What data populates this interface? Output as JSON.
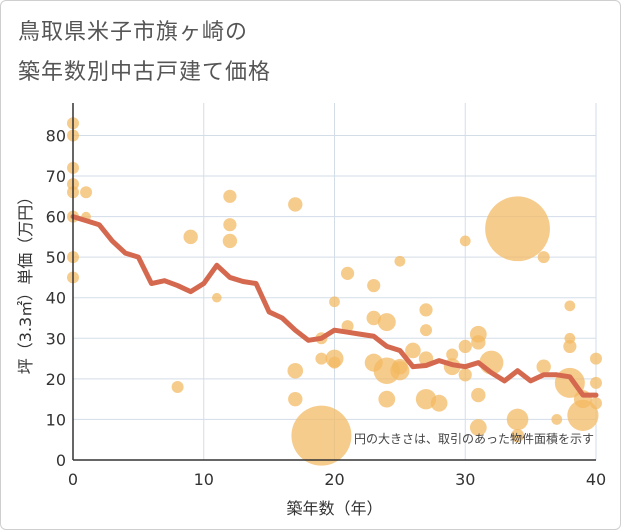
{
  "title_line1": "鳥取県米子市旗ヶ崎の",
  "title_line2": "築年数別中古戸建て価格",
  "chart_data": {
    "type": "scatter",
    "title": "鳥取県米子市旗ヶ崎の築年数別中古戸建て価格",
    "xlabel": "築年数（年）",
    "ylabel": "坪（3.3㎡）単価（万円）",
    "xlim": [
      0,
      40
    ],
    "ylim": [
      0,
      88
    ],
    "xticks": [
      0,
      10,
      20,
      30,
      40
    ],
    "yticks": [
      0,
      10,
      20,
      30,
      40,
      50,
      60,
      70,
      80
    ],
    "grid": true,
    "note": "円の大きさは、取引のあった物件面積を示す",
    "colors": {
      "bubble": "#f2b961",
      "line": "#d4694f",
      "grid": "#d3dde8",
      "axis": "#333333"
    },
    "scatter": [
      {
        "x": 0,
        "y": 83,
        "s": 1
      },
      {
        "x": 0,
        "y": 80,
        "s": 1
      },
      {
        "x": 0,
        "y": 72,
        "s": 1
      },
      {
        "x": 0,
        "y": 68,
        "s": 1
      },
      {
        "x": 0,
        "y": 66,
        "s": 1
      },
      {
        "x": 0,
        "y": 60,
        "s": 1
      },
      {
        "x": 0,
        "y": 50,
        "s": 1
      },
      {
        "x": 0,
        "y": 45,
        "s": 1
      },
      {
        "x": 1,
        "y": 66,
        "s": 1
      },
      {
        "x": 1,
        "y": 60,
        "s": 0.8
      },
      {
        "x": 8,
        "y": 18,
        "s": 1
      },
      {
        "x": 9,
        "y": 55,
        "s": 1.2
      },
      {
        "x": 11,
        "y": 40,
        "s": 0.8
      },
      {
        "x": 12,
        "y": 65,
        "s": 1.1
      },
      {
        "x": 12,
        "y": 58,
        "s": 1.1
      },
      {
        "x": 12,
        "y": 54,
        "s": 1.2
      },
      {
        "x": 17,
        "y": 63,
        "s": 1.2
      },
      {
        "x": 17,
        "y": 22,
        "s": 1.3
      },
      {
        "x": 17,
        "y": 15,
        "s": 1.2
      },
      {
        "x": 19,
        "y": 30,
        "s": 1
      },
      {
        "x": 19,
        "y": 25,
        "s": 1
      },
      {
        "x": 19,
        "y": 6,
        "s": 5
      },
      {
        "x": 20,
        "y": 39,
        "s": 0.9
      },
      {
        "x": 20,
        "y": 25,
        "s": 1.5
      },
      {
        "x": 20,
        "y": 24,
        "s": 1
      },
      {
        "x": 21,
        "y": 46,
        "s": 1.1
      },
      {
        "x": 21,
        "y": 33,
        "s": 1
      },
      {
        "x": 23,
        "y": 43,
        "s": 1.1
      },
      {
        "x": 23,
        "y": 35,
        "s": 1.2
      },
      {
        "x": 23,
        "y": 24,
        "s": 1.5
      },
      {
        "x": 24,
        "y": 34,
        "s": 1.5
      },
      {
        "x": 24,
        "y": 22,
        "s": 2.2
      },
      {
        "x": 24,
        "y": 15,
        "s": 1.4
      },
      {
        "x": 25,
        "y": 49,
        "s": 0.9
      },
      {
        "x": 25,
        "y": 23,
        "s": 1.3
      },
      {
        "x": 25,
        "y": 22,
        "s": 1.6
      },
      {
        "x": 26,
        "y": 27,
        "s": 1.3
      },
      {
        "x": 27,
        "y": 37,
        "s": 1.1
      },
      {
        "x": 27,
        "y": 32,
        "s": 1
      },
      {
        "x": 27,
        "y": 25,
        "s": 1.2
      },
      {
        "x": 27,
        "y": 15,
        "s": 1.7
      },
      {
        "x": 28,
        "y": 14,
        "s": 1.4
      },
      {
        "x": 29,
        "y": 26,
        "s": 1
      },
      {
        "x": 29,
        "y": 23,
        "s": 1.4
      },
      {
        "x": 30,
        "y": 54,
        "s": 0.9
      },
      {
        "x": 30,
        "y": 28,
        "s": 1.1
      },
      {
        "x": 30,
        "y": 21,
        "s": 1.1
      },
      {
        "x": 31,
        "y": 31,
        "s": 1.4
      },
      {
        "x": 31,
        "y": 29,
        "s": 1.2
      },
      {
        "x": 31,
        "y": 16,
        "s": 1.2
      },
      {
        "x": 31,
        "y": 8,
        "s": 1.4
      },
      {
        "x": 32,
        "y": 24,
        "s": 2
      },
      {
        "x": 34,
        "y": 57,
        "s": 5.4
      },
      {
        "x": 34,
        "y": 10,
        "s": 1.8
      },
      {
        "x": 34,
        "y": 6,
        "s": 1.1
      },
      {
        "x": 36,
        "y": 50,
        "s": 1
      },
      {
        "x": 36,
        "y": 23,
        "s": 1.2
      },
      {
        "x": 37,
        "y": 10,
        "s": 0.9
      },
      {
        "x": 38,
        "y": 38,
        "s": 0.9
      },
      {
        "x": 38,
        "y": 30,
        "s": 0.9
      },
      {
        "x": 38,
        "y": 28,
        "s": 1.1
      },
      {
        "x": 38,
        "y": 19,
        "s": 2.5
      },
      {
        "x": 39,
        "y": 11,
        "s": 2.6
      },
      {
        "x": 39,
        "y": 15,
        "s": 1.5
      },
      {
        "x": 40,
        "y": 25,
        "s": 1
      },
      {
        "x": 40,
        "y": 19,
        "s": 1
      },
      {
        "x": 40,
        "y": 14,
        "s": 1
      }
    ],
    "trend": {
      "x": [
        0,
        1,
        2,
        3,
        4,
        5,
        6,
        7,
        8,
        9,
        10,
        11,
        12,
        13,
        14,
        15,
        16,
        17,
        18,
        19,
        20,
        21,
        22,
        23,
        24,
        25,
        26,
        27,
        28,
        29,
        30,
        31,
        32,
        33,
        34,
        35,
        36,
        37,
        38,
        39,
        40
      ],
      "y": [
        60,
        59,
        58,
        54,
        51,
        50,
        43.5,
        44.2,
        43,
        41.5,
        43.5,
        48,
        45,
        44,
        43.5,
        36.5,
        35,
        32,
        29.5,
        30,
        32,
        31.5,
        31,
        30.5,
        28,
        27,
        23,
        23.3,
        24.5,
        23.5,
        23,
        24,
        21.5,
        19.5,
        22,
        19.5,
        21,
        21,
        20.5,
        16,
        16
      ]
    }
  }
}
